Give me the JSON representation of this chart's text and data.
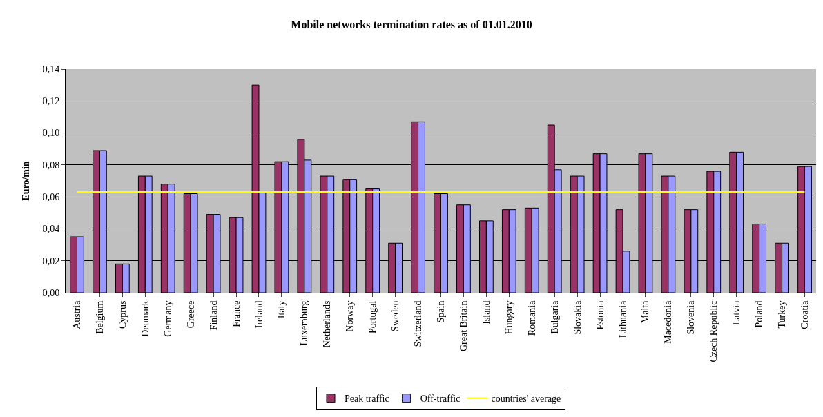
{
  "chart_data": {
    "type": "bar",
    "title": "Mobile networks termination rates as of 01.01.2010",
    "ylabel": "Euro/min",
    "categories": [
      "Austria",
      "Belgium",
      "Cyprus",
      "Denmark",
      "Germany",
      "Greece",
      "Finland",
      "France",
      "Ireland",
      "Italy",
      "Luxemburg",
      "Netherlands",
      "Norway",
      "Portugal",
      "Sweden",
      "Switzerland",
      "Spain",
      "Great Britain",
      "Island",
      "Hungary",
      "Romania",
      "Bulgaria",
      "Slovakia",
      "Estonia",
      "Lithuania",
      "Malta",
      "Macedonia",
      "Slovenia",
      "Czech Republic",
      "Latvia",
      "Poland",
      "Turkey",
      "Croatia"
    ],
    "series": [
      {
        "name": "Peak traffic",
        "color": "#993366",
        "values": [
          0.035,
          0.089,
          0.018,
          0.073,
          0.068,
          0.062,
          0.049,
          0.047,
          0.13,
          0.082,
          0.096,
          0.073,
          0.071,
          0.065,
          0.031,
          0.107,
          0.062,
          0.055,
          0.045,
          0.052,
          0.053,
          0.105,
          0.073,
          0.087,
          0.052,
          0.087,
          0.073,
          0.052,
          0.076,
          0.088,
          0.043,
          0.031,
          0.079
        ]
      },
      {
        "name": "Off-traffic",
        "color": "#9999ff",
        "values": [
          0.035,
          0.089,
          0.018,
          0.073,
          0.068,
          0.062,
          0.049,
          0.047,
          0.063,
          0.082,
          0.083,
          0.073,
          0.071,
          0.065,
          0.031,
          0.107,
          0.062,
          0.055,
          0.045,
          0.052,
          0.053,
          0.077,
          0.073,
          0.087,
          0.026,
          0.087,
          0.073,
          0.052,
          0.076,
          0.088,
          0.043,
          0.031,
          0.079
        ]
      },
      {
        "name": "countries' average",
        "type": "line",
        "color": "#ffff00",
        "values": [
          0.063,
          0.063,
          0.063,
          0.063,
          0.063,
          0.063,
          0.063,
          0.063,
          0.063,
          0.063,
          0.063,
          0.063,
          0.063,
          0.063,
          0.063,
          0.063,
          0.063,
          0.063,
          0.063,
          0.063,
          0.063,
          0.063,
          0.063,
          0.063,
          0.063,
          0.063,
          0.063,
          0.063,
          0.063,
          0.063,
          0.063,
          0.063,
          0.063
        ]
      }
    ],
    "ylim": [
      0,
      0.14
    ],
    "yticks": [
      {
        "value": 0,
        "label": "0,00"
      },
      {
        "value": 0.02,
        "label": "0,02"
      },
      {
        "value": 0.04,
        "label": "0,04"
      },
      {
        "value": 0.06,
        "label": "0,06"
      },
      {
        "value": 0.08,
        "label": "0,08"
      },
      {
        "value": 0.1,
        "label": "0,10"
      },
      {
        "value": 0.12,
        "label": "0,12"
      },
      {
        "value": 0.14,
        "label": "0,14"
      }
    ],
    "grid": "y",
    "legend": "bottom",
    "marker": "none"
  }
}
